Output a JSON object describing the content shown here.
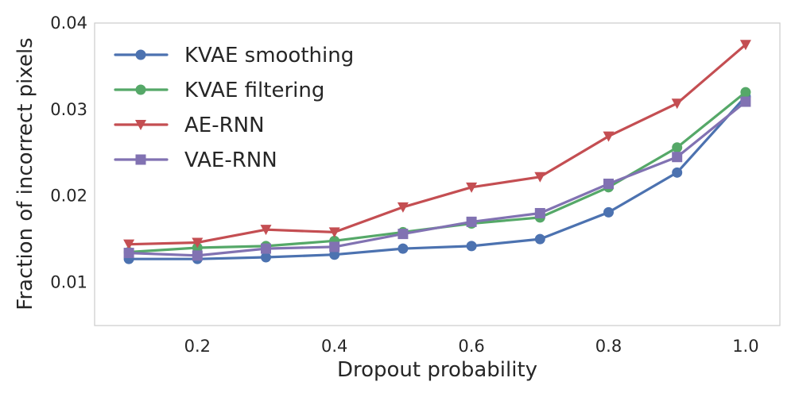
{
  "chart_data": {
    "type": "line",
    "title": "",
    "xlabel": "Dropout probability",
    "ylabel": "Fraction of incorrect pixels",
    "x": [
      0.1,
      0.2,
      0.3,
      0.4,
      0.5,
      0.6,
      0.7,
      0.8,
      0.9,
      1.0
    ],
    "xlim": [
      0.05,
      1.05
    ],
    "ylim": [
      0.005,
      0.04
    ],
    "xticks": [
      0.2,
      0.4,
      0.6,
      0.8,
      1.0
    ],
    "xtick_labels": [
      "0.2",
      "0.4",
      "0.6",
      "0.8",
      "1.0"
    ],
    "yticks": [
      0.01,
      0.02,
      0.03,
      0.04
    ],
    "ytick_labels": [
      "0.01",
      "0.02",
      "0.03",
      "0.04"
    ],
    "grid": false,
    "legend_position": "top-left",
    "series": [
      {
        "name": "KVAE smoothing",
        "color": "#4c72b0",
        "marker": "circle",
        "values": [
          0.0127,
          0.0127,
          0.0129,
          0.0132,
          0.0139,
          0.0142,
          0.015,
          0.0181,
          0.0227,
          0.0315
        ]
      },
      {
        "name": "KVAE filtering",
        "color": "#55a868",
        "marker": "circle",
        "values": [
          0.0135,
          0.014,
          0.0142,
          0.0148,
          0.0158,
          0.0168,
          0.0175,
          0.021,
          0.0256,
          0.032
        ]
      },
      {
        "name": "AE-RNN",
        "color": "#c44e52",
        "marker": "triangle-down",
        "values": [
          0.0144,
          0.0146,
          0.0161,
          0.0158,
          0.0187,
          0.021,
          0.0222,
          0.0269,
          0.0307,
          0.0375
        ]
      },
      {
        "name": "VAE-RNN",
        "color": "#8172b2",
        "marker": "square",
        "values": [
          0.0134,
          0.0131,
          0.0139,
          0.0141,
          0.0156,
          0.017,
          0.018,
          0.0214,
          0.0245,
          0.0309
        ]
      }
    ]
  }
}
